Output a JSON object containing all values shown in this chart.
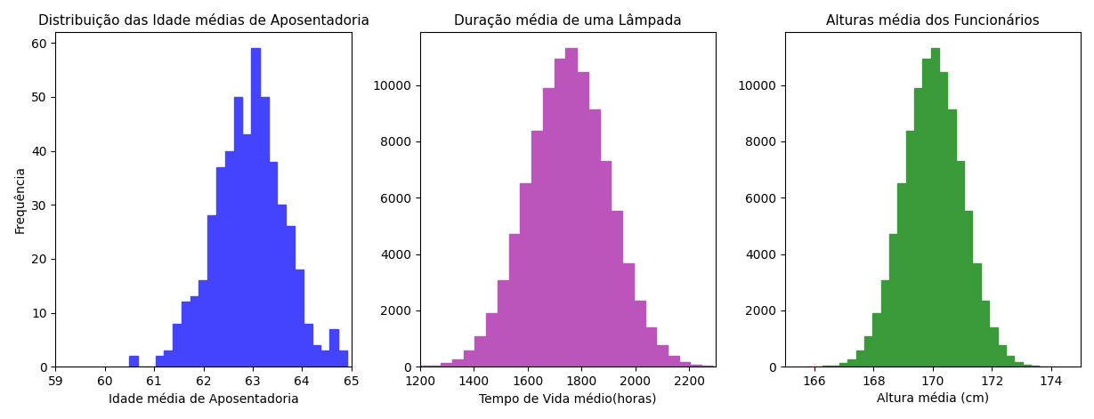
{
  "plot1": {
    "title": "Distribuição das Idade médias de Aposentadoria",
    "xlabel": "Idade média de Aposentadoria",
    "ylabel": "Frequência",
    "color": "#4444FF",
    "mean": 62.9,
    "std": 0.75,
    "n": 500,
    "bins": 25,
    "xlim": [
      59,
      65
    ],
    "seed": 10
  },
  "plot2": {
    "title": "Duração média de uma Lâmpada",
    "xlabel": "Tempo de Vida médio(horas)",
    "color": "#BB55BB",
    "mean": 1750,
    "std": 150,
    "n": 100000,
    "bins": 30,
    "xlim": [
      1200,
      2300
    ],
    "seed": 10
  },
  "plot3": {
    "title": "Alturas média dos Funcionários",
    "xlabel": "Altura média (cm)",
    "color": "#3A9A3A",
    "mean": 170.0,
    "std": 1.0,
    "n": 100000,
    "bins": 30,
    "xlim": [
      165,
      175
    ],
    "seed": 10
  }
}
